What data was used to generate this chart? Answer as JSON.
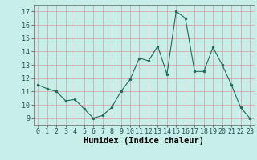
{
  "x": [
    0,
    1,
    2,
    3,
    4,
    5,
    6,
    7,
    8,
    9,
    10,
    11,
    12,
    13,
    14,
    15,
    16,
    17,
    18,
    19,
    20,
    21,
    22,
    23
  ],
  "y": [
    11.5,
    11.2,
    11.0,
    10.3,
    10.4,
    9.7,
    9.0,
    9.2,
    9.8,
    11.0,
    11.9,
    13.5,
    13.3,
    14.4,
    12.3,
    17.0,
    16.5,
    12.5,
    12.5,
    14.3,
    13.0,
    11.5,
    9.8,
    9.0
  ],
  "line_color": "#1f6b5b",
  "marker": "o",
  "marker_size": 2.0,
  "bg_color": "#c8eeea",
  "grid_color_v": "#d4a0a0",
  "grid_color_h": "#d4a0a0",
  "xlabel": "Humidex (Indice chaleur)",
  "xlim": [
    -0.5,
    23.5
  ],
  "ylim": [
    8.5,
    17.5
  ],
  "yticks": [
    9,
    10,
    11,
    12,
    13,
    14,
    15,
    16,
    17
  ],
  "xticks": [
    0,
    1,
    2,
    3,
    4,
    5,
    6,
    7,
    8,
    9,
    10,
    11,
    12,
    13,
    14,
    15,
    16,
    17,
    18,
    19,
    20,
    21,
    22,
    23
  ],
  "tick_fontsize": 6.0,
  "xlabel_fontsize": 7.5
}
